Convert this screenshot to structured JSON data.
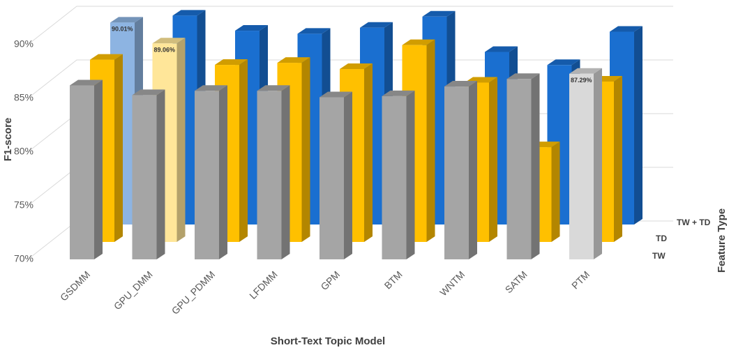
{
  "chart_data": {
    "type": "bar3d",
    "x_label": "Short-Text Topic Model",
    "y_label": "F1-score",
    "depth_label": "Feature Type",
    "categories": [
      "GSDMM",
      "GPU_DMM",
      "GPU_PDMM",
      "LFDMM",
      "GPM",
      "BTM",
      "WNTM",
      "SATM",
      "PTM"
    ],
    "series": [
      {
        "name": "TW",
        "color": "#a5a5a5",
        "colors": [
          "#a5a5a5",
          "#a5a5a5",
          "#a5a5a5",
          "#a5a5a5",
          "#a5a5a5",
          "#a5a5a5",
          "#a5a5a5",
          "#a5a5a5",
          "#d9d9d9"
        ],
        "values": [
          86.2,
          85.3,
          85.7,
          85.7,
          85.1,
          85.2,
          86.1,
          86.8,
          87.29
        ],
        "value_labels": [
          null,
          null,
          null,
          null,
          null,
          null,
          null,
          null,
          "87.29%"
        ]
      },
      {
        "name": "TD",
        "color": "#ffc000",
        "colors": [
          "#ffc000",
          "#ffe699",
          "#ffc000",
          "#ffc000",
          "#ffc000",
          "#ffc000",
          "#ffc000",
          "#ffc000",
          "#ffc000"
        ],
        "values": [
          87.5,
          89.06,
          87.0,
          87.2,
          86.6,
          88.9,
          85.3,
          79.1,
          85.4
        ],
        "value_labels": [
          null,
          "89.06%",
          null,
          null,
          null,
          null,
          null,
          null,
          null
        ]
      },
      {
        "name": "TW + TD",
        "color": "#1a6fd0",
        "colors": [
          "#8db4e2",
          "#1a6fd0",
          "#1a6fd0",
          "#1a6fd0",
          "#1a6fd0",
          "#1a6fd0",
          "#1a6fd0",
          "#1a6fd0",
          "#1a6fd0"
        ],
        "values": [
          90.01,
          90.7,
          89.2,
          88.9,
          89.5,
          90.6,
          87.1,
          85.8,
          89.1
        ],
        "value_labels": [
          "90.01%",
          null,
          null,
          null,
          null,
          null,
          null,
          null,
          null
        ]
      }
    ],
    "ylim": [
      70,
      92
    ],
    "yticks": [
      {
        "value": 70,
        "label": "70%"
      },
      {
        "value": 75,
        "label": "75%"
      },
      {
        "value": 80,
        "label": "80%"
      },
      {
        "value": 85,
        "label": "85%"
      },
      {
        "value": 90,
        "label": "90%"
      }
    ],
    "grid": true
  }
}
